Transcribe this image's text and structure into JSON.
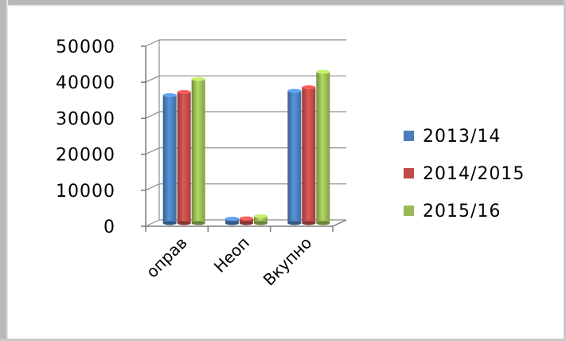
{
  "chart_data": {
    "type": "bar",
    "title": "",
    "xlabel": "",
    "ylabel": "",
    "categories": [
      "оправ",
      "Неоп",
      "Вкупно"
    ],
    "series": [
      {
        "name": "2013/14",
        "color": "#4a7ebb",
        "values": [
          35500,
          1200,
          36700
        ]
      },
      {
        "name": "2014/2015",
        "color": "#be4b48",
        "values": [
          36400,
          1300,
          37700
        ]
      },
      {
        "name": "2015/16",
        "color": "#98b954",
        "values": [
          40000,
          1900,
          42000
        ]
      }
    ],
    "ylim": [
      0,
      50000
    ],
    "yticks": [
      "0",
      "10000",
      "20000",
      "30000",
      "40000",
      "50000"
    ],
    "grid": true,
    "legend_position": "right",
    "style": "3d-clustered-column"
  }
}
